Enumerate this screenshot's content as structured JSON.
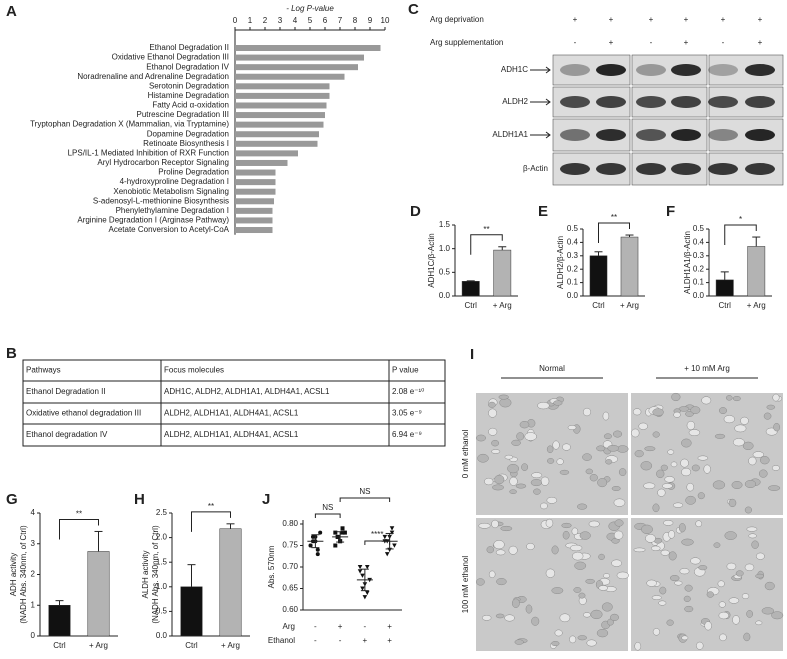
{
  "chart_data": [
    {
      "type": "hbar",
      "panel": "A",
      "xlabel": "- Log P-value",
      "categories": [
        "Ethanol Degradation II",
        "Oxidative Ethanol Degradation III",
        "Ethanol Degradation IV",
        "Noradrenaline and Adrenaline Degradation",
        "Serotonin Degradation",
        "Histamine Degradation",
        "Fatty Acid α-oxidation",
        "Putrescine Degradation III",
        "Tryptophan Degradation X (Mammalian, via Tryptamine)",
        "Dopamine Degradation",
        "Retinoate Biosynthesis I",
        "LPS/IL-1 Mediated Inhibition of RXR Function",
        "Aryl Hydrocarbon Receptor Signaling",
        "Proline Degradation",
        "4-hydroxyproline Degradation I",
        "Xenobiotic Metabolism Signaling",
        "S-adenosyl-L-methionine Biosynthesis",
        "Phenylethylamine Degradation I",
        "Arginine Degradation I (Arginase Pathway)",
        "Acetate Conversion to Acetyl-CoA"
      ],
      "values": [
        9.7,
        8.6,
        8.2,
        7.3,
        6.3,
        6.3,
        6.1,
        6.0,
        5.9,
        5.6,
        5.5,
        4.2,
        3.5,
        2.7,
        2.7,
        2.7,
        2.6,
        2.5,
        2.5,
        2.5
      ],
      "color": "#999999",
      "xlim": [
        0,
        10
      ],
      "xticks": [
        0,
        1,
        2,
        3,
        4,
        5,
        6,
        7,
        8,
        9,
        10
      ]
    },
    {
      "type": "bar",
      "panel": "D",
      "ylabel": [
        "ADH1C/β-Actin"
      ],
      "categories": [
        "Ctrl",
        "+ Arg"
      ],
      "values": [
        0.31,
        0.97
      ],
      "errors": [
        0.01,
        0.07
      ],
      "colors": [
        "#111111",
        "#b3b3b3"
      ],
      "ylim": [
        0,
        1.5
      ],
      "yticks": [
        {
          "value": 0,
          "label": "0.0"
        },
        0.5,
        {
          "value": 1,
          "label": "1.0"
        },
        1.5
      ],
      "significance": "**"
    },
    {
      "type": "bar",
      "panel": "E",
      "ylabel": [
        "ALDH2/β-Actin"
      ],
      "categories": [
        "Ctrl",
        "+ Arg"
      ],
      "values": [
        0.3,
        0.44
      ],
      "errors": [
        0.03,
        0.015
      ],
      "colors": [
        "#111111",
        "#b3b3b3"
      ],
      "ylim": [
        0,
        0.5
      ],
      "yticks": [
        {
          "value": 0,
          "label": "0.0"
        },
        0.1,
        0.2,
        0.3,
        0.4,
        0.5
      ],
      "significance": "**"
    },
    {
      "type": "bar",
      "panel": "F",
      "ylabel": [
        "ALDH1A1/β-Actin"
      ],
      "categories": [
        "Ctrl",
        "+ Arg"
      ],
      "values": [
        0.12,
        0.37
      ],
      "errors": [
        0.06,
        0.07
      ],
      "colors": [
        "#111111",
        "#b3b3b3"
      ],
      "ylim": [
        0,
        0.5
      ],
      "yticks": [
        {
          "value": 0,
          "label": "0.0"
        },
        0.1,
        0.2,
        0.3,
        0.4,
        0.5
      ],
      "significance": "*"
    },
    {
      "type": "bar",
      "panel": "G",
      "ylabel": [
        "ADH activity",
        "(NADH Abs. 340nm, of Ctrl)"
      ],
      "categories": [
        "Ctrl",
        "+ Arg"
      ],
      "values": [
        1.0,
        2.75
      ],
      "errors": [
        0.15,
        0.65
      ],
      "colors": [
        "#111111",
        "#b3b3b3"
      ],
      "ylim": [
        0,
        4
      ],
      "yticks": [
        0,
        1,
        2,
        3,
        4
      ],
      "significance": "**"
    },
    {
      "type": "bar",
      "panel": "H",
      "ylabel": [
        "ALDH activity",
        "(NADH Abs. 340nm, of Ctrl)"
      ],
      "categories": [
        "Ctrl",
        "+ Arg"
      ],
      "values": [
        1.0,
        2.18
      ],
      "errors": [
        0.45,
        0.1
      ],
      "colors": [
        "#111111",
        "#b3b3b3"
      ],
      "ylim": [
        0,
        2.5
      ],
      "yticks": [
        {
          "value": 0,
          "label": "0.0"
        },
        0.5,
        {
          "value": 1,
          "label": "1.0"
        },
        1.5,
        {
          "value": 2,
          "label": "2.0"
        },
        2.5
      ],
      "significance": "**"
    },
    {
      "type": "dot",
      "panel": "J",
      "ylabel": [
        "Abs. 570nm"
      ],
      "values": [
        [
          0.75,
          0.77,
          0.76,
          0.74,
          0.78,
          0.75,
          0.76,
          0.77,
          0.73
        ],
        [
          0.78,
          0.77,
          0.76,
          0.79,
          0.78,
          0.75,
          0.77,
          0.76,
          0.78
        ],
        [
          0.7,
          0.68,
          0.66,
          0.64,
          0.67,
          0.69,
          0.65,
          0.63,
          0.7
        ],
        [
          0.77,
          0.76,
          0.74,
          0.78,
          0.75,
          0.76,
          0.73,
          0.77,
          0.79
        ]
      ],
      "means": [
        0.76,
        0.77,
        0.67,
        0.76
      ],
      "errors": [
        0.015,
        0.012,
        0.025,
        0.018
      ],
      "markers": [
        "circle",
        "square",
        "triangle-down",
        "triangle-down"
      ],
      "conditions": [
        {
          "name": "Arg",
          "values": [
            "-",
            "+",
            "-",
            "+"
          ]
        },
        {
          "name": "Ethanol",
          "values": [
            "-",
            "-",
            "+",
            "+"
          ]
        }
      ],
      "annotations": [
        "NS",
        "NS",
        "****"
      ],
      "ylim": [
        0.6,
        0.8
      ],
      "yticks": [
        {
          "value": 0.6,
          "label": "0.60"
        },
        0.65,
        {
          "value": 0.7,
          "label": "0.70"
        },
        0.75,
        {
          "value": 0.8,
          "label": "0.80"
        }
      ]
    }
  ],
  "table": {
    "panel": "B",
    "header": [
      "Pathways",
      "Focus molecules",
      "P value"
    ],
    "rows": [
      [
        "Ethanol Degradation II",
        "ADH1C, ALDH2, ALDH1A1, ALDH4A1, ACSL1",
        "2.08 e⁻¹⁰"
      ],
      [
        "Oxidative ethanol degradation III",
        "ALDH2, ALDH1A1, ALDH4A1, ACSL1",
        "3.05 e⁻⁹"
      ],
      [
        "Ethanol degradation IV",
        "ALDH2, ALDH1A1, ALDH4A1, ACSL1",
        "6.94 e⁻⁹"
      ]
    ]
  },
  "blot": {
    "panel": "C",
    "conditions": [
      {
        "name": "Arg deprivation",
        "values": [
          "+",
          "+",
          "+",
          "+",
          "+",
          "+"
        ]
      },
      {
        "name": "Arg supplementation",
        "values": [
          "-",
          "+",
          "-",
          "+",
          "-",
          "+"
        ]
      }
    ],
    "proteins": [
      "ADH1C",
      "ALDH2",
      "ALDH1A1",
      "β-Actin"
    ]
  },
  "micrograph": {
    "panel": "I",
    "columns": [
      "Normal",
      "+ 10 mM Arg"
    ],
    "rows": [
      "0 mM ethanol",
      "100 mM ethanol"
    ]
  }
}
